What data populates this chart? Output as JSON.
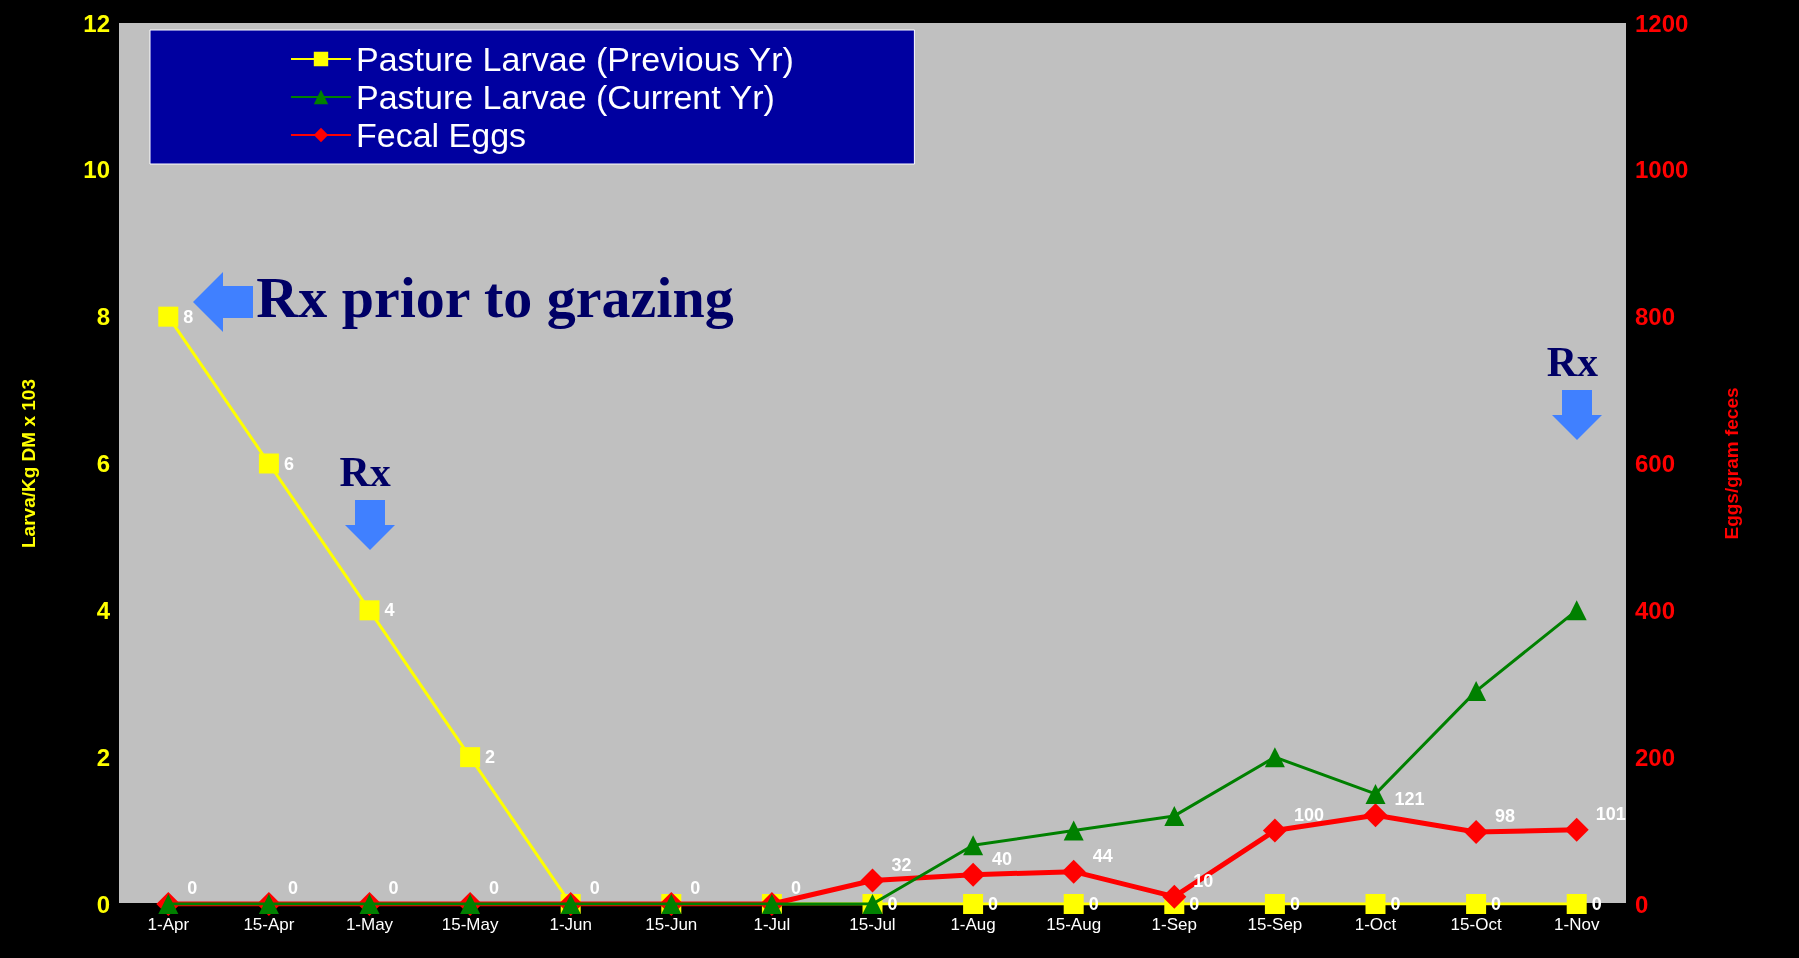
{
  "chart_data": {
    "type": "line",
    "ylabel": "Larva/Kg DM x 103",
    "y2label": "Eggs/gram feces",
    "categories": [
      "1-Apr",
      "15-Apr",
      "1-May",
      "15-May",
      "1-Jun",
      "15-Jun",
      "1-Jul",
      "15-Jul",
      "1-Aug",
      "15-Aug",
      "1-Sep",
      "15-Sep",
      "1-Oct",
      "15-Oct",
      "1-Nov"
    ],
    "series": [
      {
        "name": "Pasture Larvae (Previous Yr)",
        "color": "#ffff00",
        "marker": "square",
        "values": [
          8,
          6,
          4,
          2,
          0,
          0,
          0,
          0,
          0,
          0,
          0,
          0,
          0,
          0,
          0
        ],
        "value_labels": [
          "8",
          "6",
          "4",
          "2",
          null,
          null,
          null,
          "0",
          "0",
          "0",
          "0",
          "0",
          "0",
          "0",
          "0"
        ]
      },
      {
        "name": "Pasture Larvae (Current Yr)",
        "color": "#008000",
        "marker": "triangle",
        "values": [
          0,
          0,
          0,
          0,
          0,
          0,
          0,
          0,
          0.8,
          1.0,
          1.2,
          2.0,
          1.5,
          2.9,
          4.0
        ]
      },
      {
        "name": "Fecal Eggs",
        "color": "#ff0000",
        "marker": "diamond",
        "axis": "y2",
        "values": [
          0,
          0,
          0,
          0,
          0,
          0,
          0,
          32,
          40,
          44,
          10,
          100,
          121,
          98,
          101
        ],
        "value_labels": [
          "0",
          "0",
          "0",
          "0",
          "0",
          "0",
          "0",
          "32",
          "40",
          "44",
          "10",
          "100",
          "121",
          "98",
          "101"
        ]
      }
    ],
    "ylim": [
      0,
      12
    ],
    "yticks": [
      0,
      2,
      4,
      6,
      8,
      10,
      12
    ],
    "y2lim": [
      0,
      1200
    ],
    "y2ticks": [
      0,
      200,
      400,
      600,
      800,
      1000,
      1200
    ],
    "grid": false,
    "legend": "top left",
    "line_style": "solid",
    "annotations": [
      "Rx prior to grazing",
      "Rx",
      "Rx"
    ]
  }
}
